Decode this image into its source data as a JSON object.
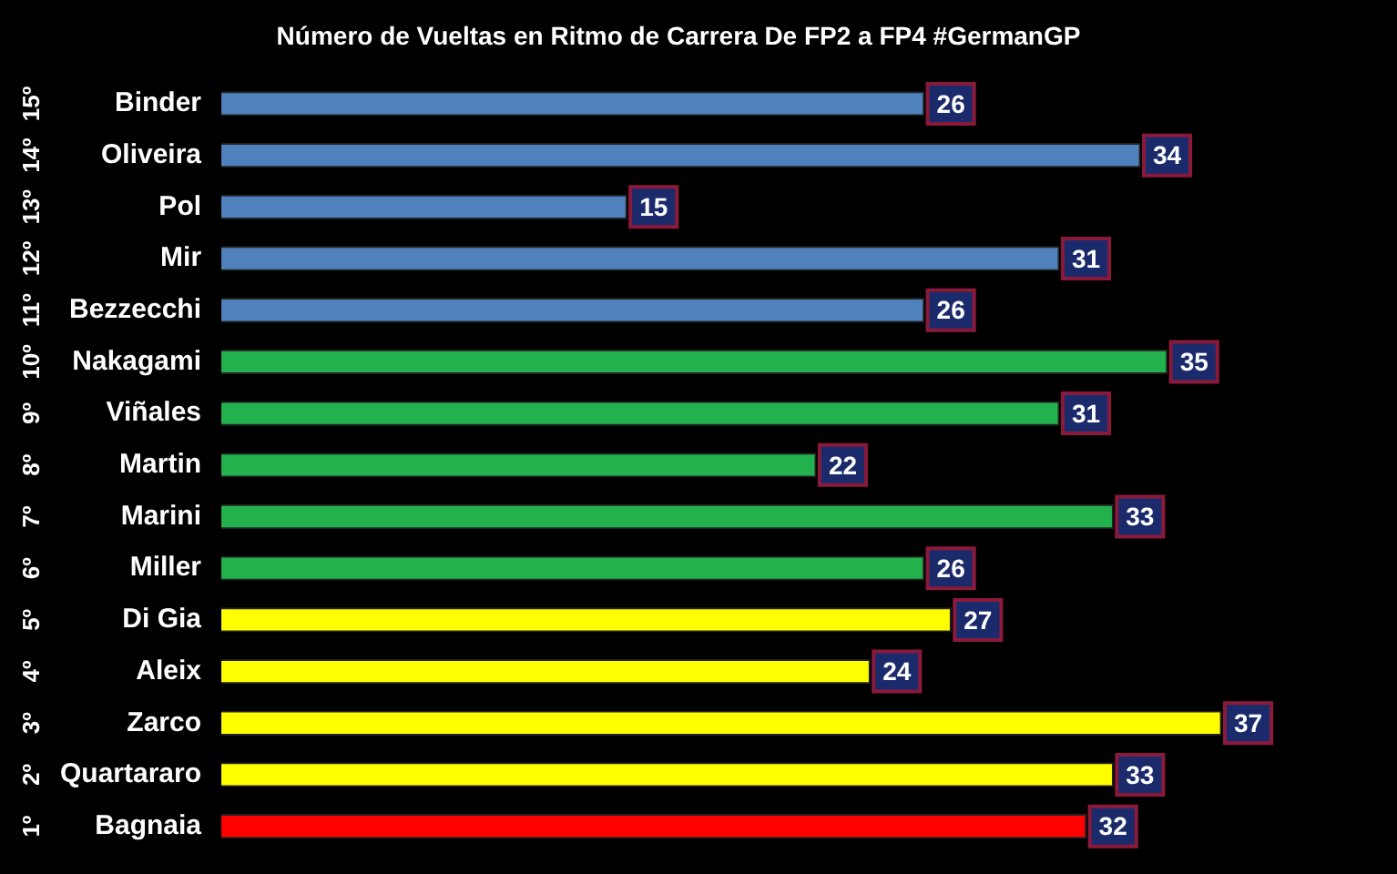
{
  "chart_data": {
    "type": "bar",
    "orientation": "horizontal",
    "title": "Número de Vueltas en Ritmo de Carrera De FP2 a FP4 #GermanGP",
    "categories": [
      "Binder",
      "Oliveira",
      "Pol",
      "Mir",
      "Bezzecchi",
      "Nakagami",
      "Viñales",
      "Martin",
      "Marini",
      "Miller",
      "Di Gia",
      "Aleix",
      "Zarco",
      "Quartararo",
      "Bagnaia"
    ],
    "values": [
      26,
      34,
      15,
      31,
      26,
      35,
      31,
      22,
      33,
      26,
      27,
      24,
      37,
      33,
      32
    ],
    "colors": [
      "#4f81bd",
      "#4f81bd",
      "#4f81bd",
      "#4f81bd",
      "#4f81bd",
      "#22b14c",
      "#22b14c",
      "#22b14c",
      "#22b14c",
      "#22b14c",
      "#ffff00",
      "#ffff00",
      "#ffff00",
      "#ffff00",
      "#ff0000"
    ],
    "tick_labels": "y",
    "data_labels": true,
    "annotations": [
      "15º",
      "14º",
      "13º",
      "12º",
      "11º",
      "10º",
      "9º",
      "8º",
      "7º",
      "6º",
      "5º",
      "4º",
      "3º",
      "2º",
      "1º"
    ]
  }
}
